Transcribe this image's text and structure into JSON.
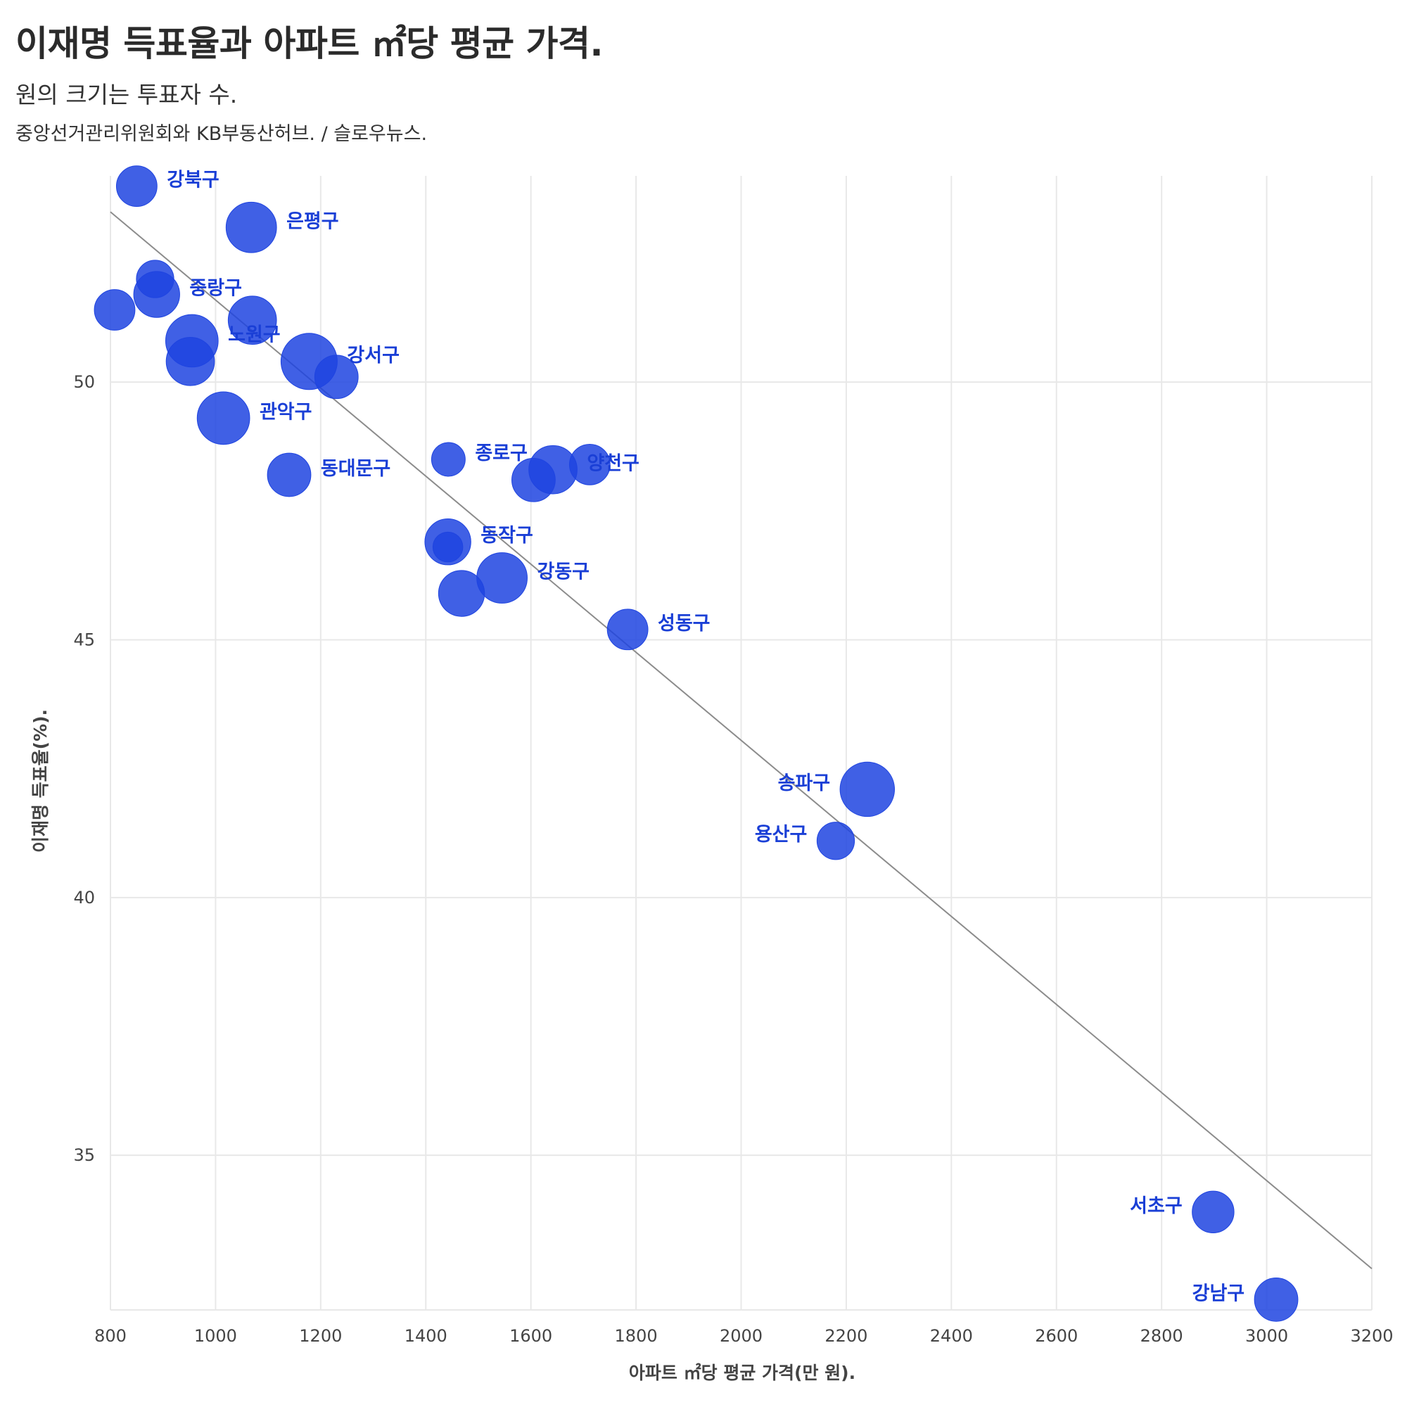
{
  "header": {
    "title": "이재명 득표율과 아파트 ㎡당 평균 가격.",
    "subtitle": "원의 크기는 투표자 수.",
    "source": "중앙선거관리위원회와 KB부동산허브. / 슬로우뉴스."
  },
  "colors": {
    "bubble": "#1f44e0",
    "label": "#1a3fd6",
    "trend": "#8c8c8c",
    "grid": "#e8e8e8"
  },
  "chart_data": {
    "type": "scatter",
    "xlabel": "아파트 ㎡당 평균 가격(만 원).",
    "ylabel": "이재명 득표율(%).",
    "xlim": [
      800,
      3200
    ],
    "ylim": [
      32,
      54
    ],
    "xticks": [
      800,
      1000,
      1200,
      1400,
      1600,
      1800,
      2000,
      2200,
      2400,
      2600,
      2800,
      3000,
      3200
    ],
    "yticks": [
      35,
      40,
      45,
      50
    ],
    "grid": true,
    "size_legend": "원의 크기는 투표자 수.",
    "trend_line": {
      "x": [
        800,
        3200
      ],
      "y": [
        53.3,
        32.8
      ]
    },
    "points": [
      {
        "label": "강북구",
        "x": 850,
        "y": 53.8,
        "size": 2,
        "label_side": "right"
      },
      {
        "label": "은평구",
        "x": 1068,
        "y": 53.0,
        "size": 4,
        "label_side": "right"
      },
      {
        "label": "",
        "x": 885,
        "y": 52.0,
        "size": 1.5
      },
      {
        "label": "중랑구",
        "x": 888,
        "y": 51.7,
        "size": 3,
        "label_side": "right"
      },
      {
        "label": "",
        "x": 808,
        "y": 51.4,
        "size": 2
      },
      {
        "label": "",
        "x": 1070,
        "y": 51.2,
        "size": 3.5
      },
      {
        "label": "노원구",
        "x": 955,
        "y": 50.8,
        "size": 4.5,
        "label_side": "right"
      },
      {
        "label": "",
        "x": 952,
        "y": 50.4,
        "size": 3.5
      },
      {
        "label": "강서구",
        "x": 1178,
        "y": 50.4,
        "size": 5.5,
        "label_side": "right"
      },
      {
        "label": "",
        "x": 1230,
        "y": 50.1,
        "size": 2.5
      },
      {
        "label": "관악구",
        "x": 1015,
        "y": 49.3,
        "size": 4.5,
        "label_side": "right"
      },
      {
        "label": "동대문구",
        "x": 1140,
        "y": 48.2,
        "size": 2.5,
        "label_side": "right"
      },
      {
        "label": "종로구",
        "x": 1443,
        "y": 48.5,
        "size": 1,
        "label_side": "right"
      },
      {
        "label": "",
        "x": 1605,
        "y": 48.1,
        "size": 2.5
      },
      {
        "label": "",
        "x": 1712,
        "y": 48.4,
        "size": 2
      },
      {
        "label": "양천구",
        "x": 1642,
        "y": 48.3,
        "size": 3.5,
        "label_side": "right"
      },
      {
        "label": "동작구",
        "x": 1442,
        "y": 46.9,
        "size": 3,
        "label_side": "right"
      },
      {
        "label": "",
        "x": 1442,
        "y": 46.8,
        "size": 0.6
      },
      {
        "label": "강동구",
        "x": 1545,
        "y": 46.2,
        "size": 4,
        "label_side": "right"
      },
      {
        "label": "",
        "x": 1468,
        "y": 45.9,
        "size": 3
      },
      {
        "label": "성동구",
        "x": 1784,
        "y": 45.2,
        "size": 2,
        "label_side": "right"
      },
      {
        "label": "송파구",
        "x": 2240,
        "y": 42.1,
        "size": 5,
        "label_side": "left"
      },
      {
        "label": "용산구",
        "x": 2180,
        "y": 41.1,
        "size": 1.5,
        "label_side": "left"
      },
      {
        "label": "서초구",
        "x": 2898,
        "y": 33.9,
        "size": 2.2,
        "label_side": "left"
      },
      {
        "label": "강남구",
        "x": 3018,
        "y": 32.2,
        "size": 2.5,
        "label_side": "left"
      }
    ]
  }
}
